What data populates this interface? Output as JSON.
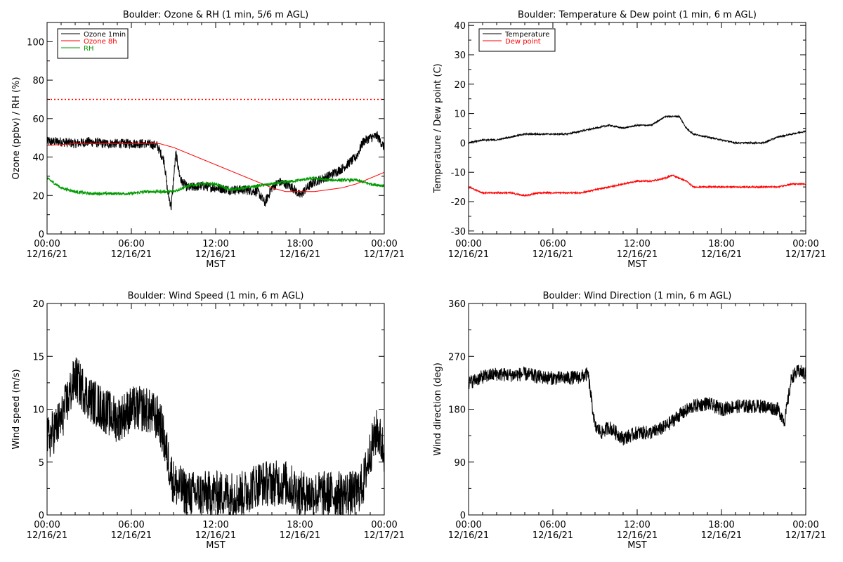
{
  "chart_data": [
    {
      "type": "line",
      "title": "Boulder: Ozone & RH (1 min, 5/6 m AGL)",
      "xlabel": "MST",
      "ylabel": "Ozone (ppbv) / RH (%)",
      "ylim": [
        0,
        110
      ],
      "yticks": [
        0,
        20,
        40,
        60,
        80,
        100
      ],
      "xticks": [
        {
          "time": "00:00",
          "date": "12/16/21"
        },
        {
          "time": "06:00",
          "date": "12/16/21"
        },
        {
          "time": "12:00",
          "date": "12/16/21"
        },
        {
          "time": "18:00",
          "date": "12/16/21"
        },
        {
          "time": "00:00",
          "date": "12/17/21"
        }
      ],
      "legend_position": "top-left",
      "reference_line": {
        "value": 70,
        "color": "#ff0000",
        "style": "dotted"
      },
      "series": [
        {
          "name": "Ozone 1min",
          "color": "#000000",
          "noise": 2.5,
          "x": [
            "00:00",
            "01:00",
            "02:00",
            "03:00",
            "04:00",
            "05:00",
            "06:00",
            "07:00",
            "07:50",
            "08:20",
            "08:35",
            "08:50",
            "09:10",
            "09:30",
            "10:00",
            "11:00",
            "12:00",
            "13:00",
            "14:00",
            "15:00",
            "15:30",
            "16:00",
            "16:30",
            "17:00",
            "17:30",
            "18:00",
            "18:30",
            "19:00",
            "20:00",
            "21:00",
            "22:00",
            "22:30",
            "23:00",
            "23:30",
            "23:59"
          ],
          "y": [
            48,
            48,
            47,
            48,
            47,
            47,
            47,
            47,
            46,
            38,
            22,
            14,
            42,
            28,
            24,
            25,
            24,
            23,
            23,
            22,
            16,
            24,
            27,
            26,
            24,
            20,
            24,
            27,
            30,
            34,
            40,
            48,
            50,
            51,
            45
          ]
        },
        {
          "name": "Ozone 8h",
          "color": "#ff0000",
          "noise": 0,
          "x": [
            "00:00",
            "02:00",
            "04:00",
            "06:00",
            "07:00",
            "08:00",
            "09:00",
            "10:00",
            "11:00",
            "12:00",
            "13:00",
            "14:00",
            "15:00",
            "16:00",
            "17:00",
            "18:00",
            "19:00",
            "20:00",
            "21:00",
            "22:00",
            "23:00",
            "23:59"
          ],
          "y": [
            46,
            47,
            47,
            47,
            47,
            47,
            45,
            42,
            39,
            36,
            33,
            30,
            27,
            24,
            22,
            22,
            22,
            23,
            24,
            26,
            29,
            32
          ]
        },
        {
          "name": "RH",
          "color": "#009900",
          "noise": 0.8,
          "x": [
            "00:00",
            "01:00",
            "02:00",
            "03:00",
            "04:00",
            "05:00",
            "06:00",
            "07:00",
            "08:00",
            "09:00",
            "10:00",
            "11:00",
            "12:00",
            "13:00",
            "14:00",
            "15:00",
            "16:00",
            "17:00",
            "18:00",
            "19:00",
            "20:00",
            "21:00",
            "22:00",
            "23:00",
            "23:59"
          ],
          "y": [
            29,
            24,
            22,
            21,
            21,
            21,
            21,
            22,
            22,
            22,
            25,
            26,
            26,
            23,
            24,
            25,
            26,
            27,
            28,
            29,
            28,
            28,
            28,
            26,
            25
          ]
        }
      ]
    },
    {
      "type": "line",
      "title": "Boulder: Temperature & Dew point (1 min, 6 m AGL)",
      "xlabel": "MST",
      "ylabel": "Temperature / Dew point (C)",
      "ylim": [
        -31,
        41
      ],
      "yticks": [
        -30,
        -20,
        -10,
        0,
        10,
        20,
        30,
        40
      ],
      "xticks": [
        {
          "time": "00:00",
          "date": "12/16/21"
        },
        {
          "time": "06:00",
          "date": "12/16/21"
        },
        {
          "time": "12:00",
          "date": "12/16/21"
        },
        {
          "time": "18:00",
          "date": "12/16/21"
        },
        {
          "time": "00:00",
          "date": "12/17/21"
        }
      ],
      "legend_position": "top-left",
      "series": [
        {
          "name": "Temperature",
          "color": "#000000",
          "noise": 0.25,
          "x": [
            "00:00",
            "01:00",
            "02:00",
            "03:00",
            "04:00",
            "05:00",
            "06:00",
            "07:00",
            "08:00",
            "09:00",
            "10:00",
            "11:00",
            "12:00",
            "13:00",
            "14:00",
            "14:30",
            "15:00",
            "15:30",
            "16:00",
            "17:00",
            "18:00",
            "19:00",
            "20:00",
            "21:00",
            "22:00",
            "23:00",
            "23:59"
          ],
          "y": [
            0,
            1,
            1,
            2,
            3,
            3,
            3,
            3,
            4,
            5,
            6,
            5,
            6,
            6,
            9,
            9,
            9,
            5,
            3,
            2,
            1,
            0,
            0,
            0,
            2,
            3,
            4
          ]
        },
        {
          "name": "Dew point",
          "color": "#ff0000",
          "noise": 0.25,
          "x": [
            "00:00",
            "01:00",
            "02:00",
            "03:00",
            "04:00",
            "05:00",
            "06:00",
            "07:00",
            "08:00",
            "09:00",
            "10:00",
            "11:00",
            "12:00",
            "13:00",
            "14:00",
            "14:30",
            "15:00",
            "15:30",
            "16:00",
            "17:00",
            "18:00",
            "19:00",
            "20:00",
            "21:00",
            "22:00",
            "23:00",
            "23:59"
          ],
          "y": [
            -15,
            -17,
            -17,
            -17,
            -18,
            -17,
            -17,
            -17,
            -17,
            -16,
            -15,
            -14,
            -13,
            -13,
            -12,
            -11,
            -12,
            -13,
            -15,
            -15,
            -15,
            -15,
            -15,
            -15,
            -15,
            -14,
            -14
          ]
        }
      ]
    },
    {
      "type": "line",
      "title": "Boulder: Wind Speed (1 min, 6 m AGL)",
      "xlabel": "MST",
      "ylabel": "Wind speed (m/s)",
      "ylim": [
        0,
        20
      ],
      "yticks": [
        0,
        5,
        10,
        15,
        20
      ],
      "xticks": [
        {
          "time": "00:00",
          "date": "12/16/21"
        },
        {
          "time": "06:00",
          "date": "12/16/21"
        },
        {
          "time": "12:00",
          "date": "12/16/21"
        },
        {
          "time": "18:00",
          "date": "12/16/21"
        },
        {
          "time": "00:00",
          "date": "12/17/21"
        }
      ],
      "series": [
        {
          "color": "#000000",
          "noise": 2.2,
          "x": [
            "00:00",
            "01:00",
            "02:00",
            "03:00",
            "04:00",
            "05:00",
            "06:00",
            "07:00",
            "08:00",
            "08:30",
            "09:00",
            "10:00",
            "11:00",
            "12:00",
            "13:00",
            "14:00",
            "15:00",
            "16:00",
            "17:00",
            "18:00",
            "19:00",
            "20:00",
            "21:00",
            "22:00",
            "22:30",
            "23:00",
            "23:30",
            "23:59"
          ],
          "y": [
            7,
            9,
            13,
            11,
            10,
            9,
            10,
            10,
            9,
            6,
            3,
            2,
            2,
            2,
            2,
            2,
            3,
            3,
            3,
            2,
            2,
            2,
            2,
            2,
            3,
            6,
            8,
            6
          ]
        }
      ]
    },
    {
      "type": "line",
      "title": "Boulder: Wind Direction (1 min, 6 m AGL)",
      "xlabel": "MST",
      "ylabel": "Wind direction (deg)",
      "ylim": [
        0,
        360
      ],
      "yticks": [
        0,
        90,
        180,
        270,
        360
      ],
      "xticks": [
        {
          "time": "00:00",
          "date": "12/16/21"
        },
        {
          "time": "06:00",
          "date": "12/16/21"
        },
        {
          "time": "12:00",
          "date": "12/16/21"
        },
        {
          "time": "18:00",
          "date": "12/16/21"
        },
        {
          "time": "00:00",
          "date": "12/17/21"
        }
      ],
      "series": [
        {
          "color": "#000000",
          "noise": 12,
          "x": [
            "00:00",
            "01:00",
            "02:00",
            "03:00",
            "04:00",
            "05:00",
            "06:00",
            "07:00",
            "08:00",
            "08:30",
            "09:00",
            "09:30",
            "10:00",
            "11:00",
            "12:00",
            "13:00",
            "14:00",
            "15:00",
            "16:00",
            "17:00",
            "18:00",
            "19:00",
            "20:00",
            "21:00",
            "22:00",
            "22:30",
            "23:00",
            "23:30",
            "23:59"
          ],
          "y": [
            225,
            235,
            240,
            238,
            240,
            235,
            233,
            233,
            235,
            240,
            150,
            140,
            150,
            130,
            140,
            140,
            150,
            170,
            185,
            190,
            180,
            185,
            185,
            185,
            180,
            160,
            235,
            245,
            240
          ]
        }
      ]
    }
  ]
}
